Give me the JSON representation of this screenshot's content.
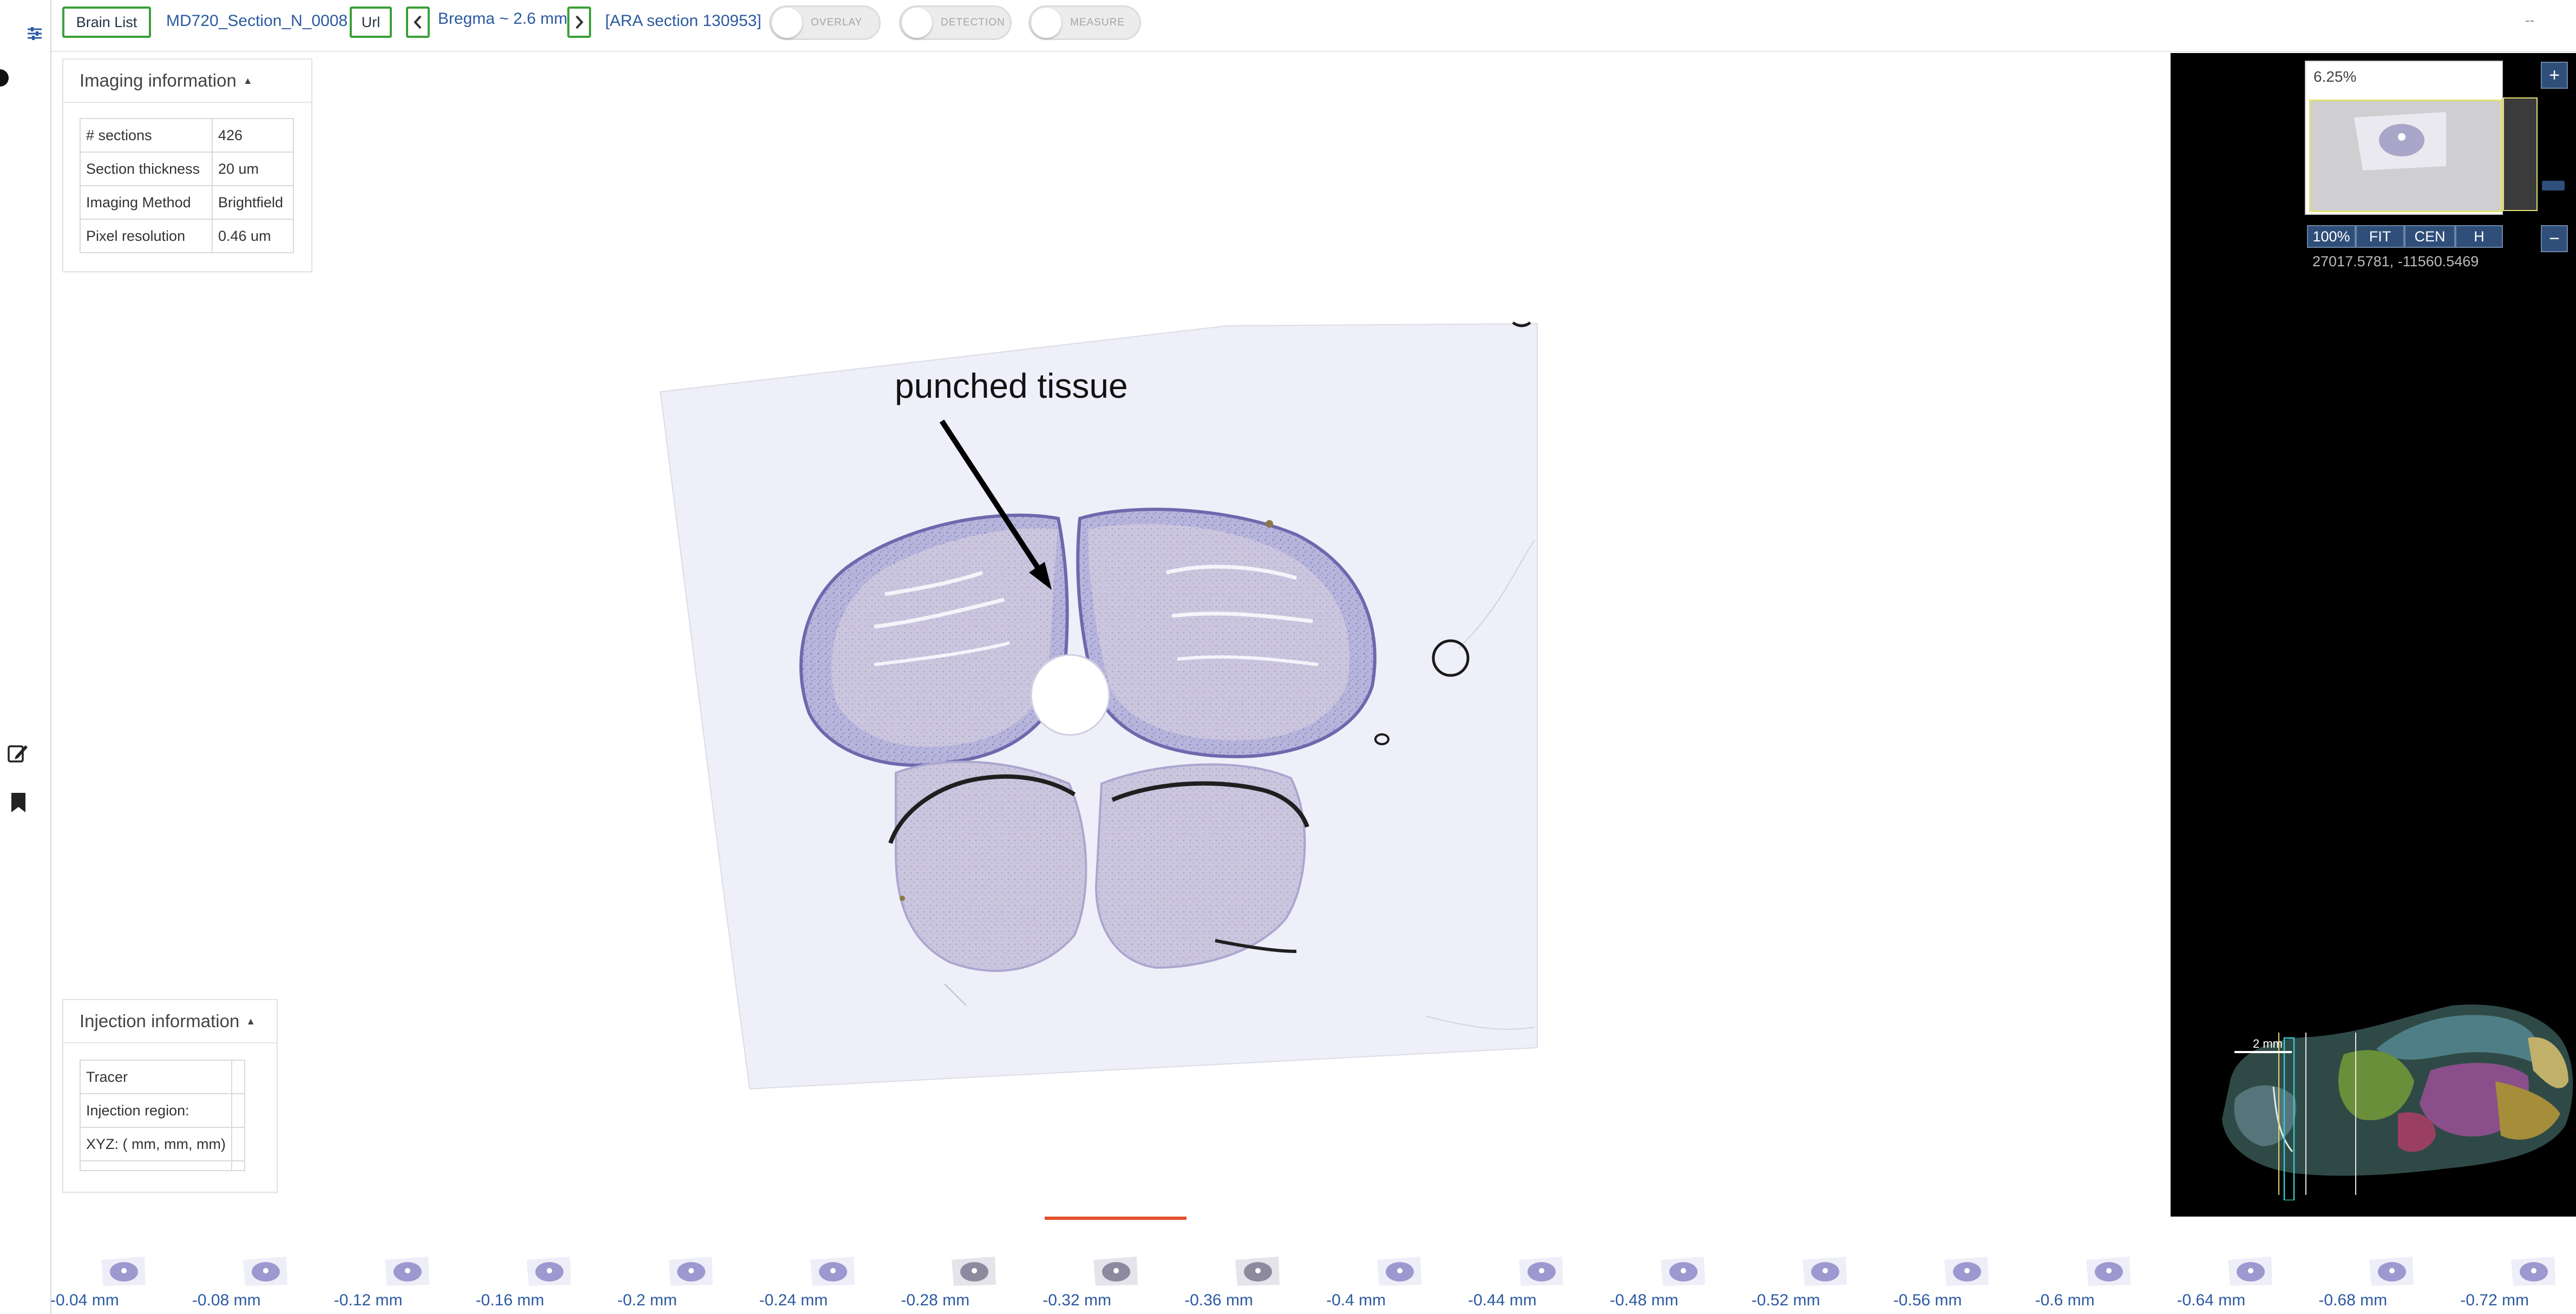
{
  "header": {
    "brain_list": "Brain List",
    "section_name": "MD720_Section_N_0008",
    "url_button": "Url",
    "prev_icon": "chevron-left-icon",
    "next_icon": "chevron-right-icon",
    "bregma": "Bregma ~ 2.6 mm",
    "ara_section": "[ARA section 130953]",
    "toggles": [
      "OVERLAY",
      "DETECTION",
      "MEASURE"
    ],
    "menu_hint": "--"
  },
  "left_strip": {
    "icons": [
      "sliders-icon",
      "dot-icon",
      "edit-icon",
      "bookmark-icon"
    ]
  },
  "imaging_panel": {
    "title": "Imaging information",
    "rows": [
      {
        "label": "# sections",
        "value": "426"
      },
      {
        "label": "Section thickness",
        "value": "20 um"
      },
      {
        "label": "Imaging Method",
        "value": "Brightfield"
      },
      {
        "label": "Pixel resolution",
        "value": "0.46 um"
      }
    ]
  },
  "injection_panel": {
    "title": "Injection information",
    "rows": [
      {
        "label": "Tracer",
        "value": ""
      },
      {
        "label": "Injection region:",
        "value": ""
      },
      {
        "label": "XYZ: ( mm, mm, mm)",
        "value": ""
      }
    ]
  },
  "annotation": {
    "text": "punched tissue"
  },
  "navigator": {
    "zoom_level": "6.25%",
    "buttons": [
      "100%",
      "FIT",
      "CEN",
      "H"
    ],
    "coordinates": "27017.5781, -11560.5469",
    "zoom_in": "+",
    "zoom_out": "−",
    "scale_bar": "2 mm"
  },
  "strip": {
    "selected_index": 7,
    "labels": [
      "-0.04 mm",
      "-0.08 mm",
      "-0.12 mm",
      "-0.16 mm",
      "-0.2 mm",
      "-0.24 mm",
      "-0.28 mm",
      "-0.32 mm",
      "-0.36 mm",
      "-0.4 mm",
      "-0.44 mm",
      "-0.48 mm",
      "-0.52 mm",
      "-0.56 mm",
      "-0.6 mm",
      "-0.64 mm",
      "-0.68 mm",
      "-0.72 mm"
    ]
  },
  "colors": {
    "accent_green": "#3aa03a",
    "link_blue": "#2c5aa0",
    "selection_orange": "#e0502a",
    "nissl_purple": "#8a86c0"
  }
}
